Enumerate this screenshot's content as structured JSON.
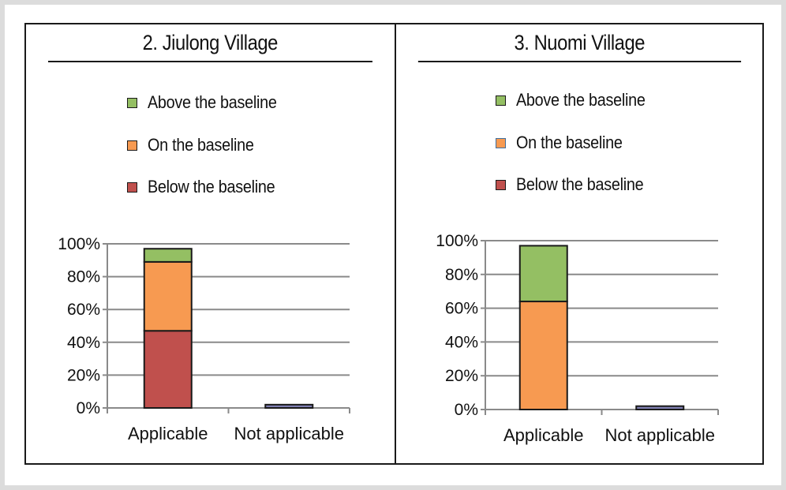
{
  "colors": {
    "above": "#94bf63",
    "on": "#f79a51",
    "below": "#c0504d",
    "not_applicable": "#7f7fb2",
    "gridline": "#8a8a8a"
  },
  "panels": [
    {
      "title": "2.  Jiulong Village",
      "legend": [
        "Above the baseline",
        "On the baseline",
        "Below the baseline"
      ]
    },
    {
      "title": "3.  Nuomi Village",
      "legend": [
        "Above the baseline",
        "On the baseline",
        "Below the baseline"
      ]
    }
  ],
  "chart_data": [
    {
      "type": "bar",
      "stacked": true,
      "title": "2.  Jiulong Village",
      "categories": [
        "Applicable",
        "Not applicable"
      ],
      "series": [
        {
          "name": "Below the baseline",
          "values": [
            47,
            0
          ]
        },
        {
          "name": "On the baseline",
          "values": [
            42,
            0
          ]
        },
        {
          "name": "Above the baseline",
          "values": [
            8,
            0
          ]
        },
        {
          "values": [
            0,
            2
          ]
        }
      ],
      "ylim": [
        0,
        100
      ],
      "yticks": [
        "0%",
        "20%",
        "40%",
        "60%",
        "80%",
        "100%"
      ],
      "grid": true,
      "legend_position": "top"
    },
    {
      "type": "bar",
      "stacked": true,
      "title": "3.  Nuomi Village",
      "categories": [
        "Applicable",
        "Not applicable"
      ],
      "series": [
        {
          "name": "Below the baseline",
          "values": [
            0,
            0
          ]
        },
        {
          "name": "On the baseline",
          "values": [
            64,
            0
          ]
        },
        {
          "name": "Above the baseline",
          "values": [
            33,
            0
          ]
        },
        {
          "values": [
            0,
            2
          ]
        }
      ],
      "ylim": [
        0,
        100
      ],
      "yticks": [
        "0%",
        "20%",
        "40%",
        "60%",
        "80%",
        "100%"
      ],
      "grid": true,
      "legend_position": "top"
    }
  ]
}
